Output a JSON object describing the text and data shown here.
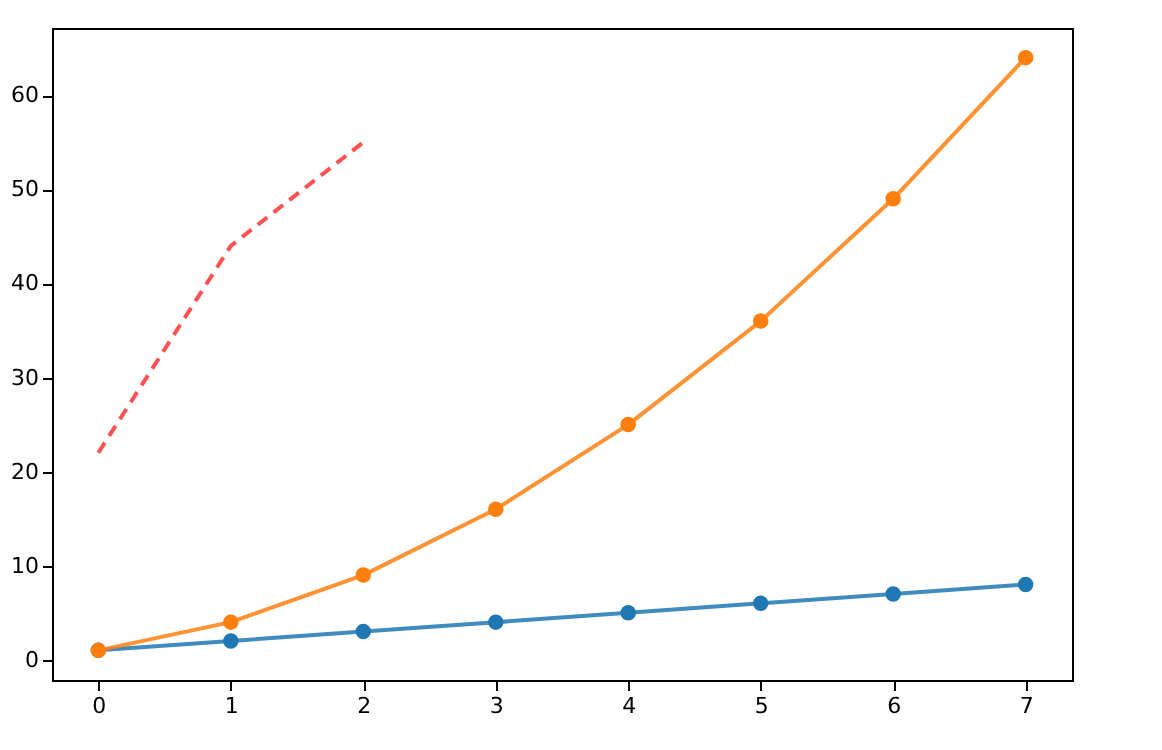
{
  "chart_data": {
    "type": "line",
    "x": [
      0,
      1,
      2,
      3,
      4,
      5,
      6,
      7
    ],
    "series": [
      {
        "color": "#1f77b4",
        "values": [
          1,
          2,
          3,
          4,
          5,
          6,
          7,
          8
        ],
        "marker": "circle",
        "line_style": "solid"
      },
      {
        "color": "#ff7f0e",
        "values": [
          1,
          4,
          9,
          16,
          25,
          36,
          49,
          64
        ],
        "marker": "circle",
        "line_style": "solid"
      },
      {
        "color": "#ff3333",
        "x": [
          0,
          1,
          2
        ],
        "values": [
          22,
          44,
          55
        ],
        "marker": "none",
        "line_style": "dashed"
      }
    ],
    "xlim": [
      -0.35,
      7.35
    ],
    "xticks": [
      0,
      1,
      2,
      3,
      4,
      5,
      6,
      7
    ],
    "ylim": [
      -2.15,
      67.15
    ],
    "yticks": [
      0,
      10,
      20,
      30,
      40,
      50,
      60
    ],
    "grid": false
  }
}
